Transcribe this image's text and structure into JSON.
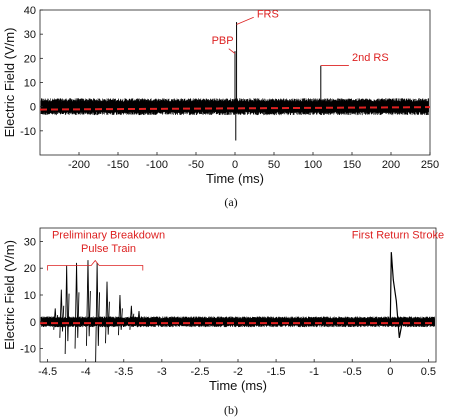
{
  "chart_data": [
    {
      "type": "line",
      "caption": "(a)",
      "xlabel": "Time (ms)",
      "ylabel": "Electric Field (V/m)",
      "xlim": [
        -250,
        250
      ],
      "ylim": [
        -20,
        40
      ],
      "xticks": [
        -200,
        -150,
        -100,
        -50,
        0,
        50,
        100,
        150,
        200,
        250
      ],
      "yticks": [
        -10,
        0,
        10,
        20,
        30,
        40
      ],
      "grid": false,
      "series": [
        {
          "color": "#000000",
          "noise_band": [
            -3.5,
            3.5
          ],
          "spikes": [
            {
              "x": 0,
              "y": 23
            },
            {
              "x": 2,
              "y": 35
            },
            {
              "x": 1,
              "y": -14
            },
            {
              "x": 110,
              "y": 17
            }
          ]
        },
        {
          "style": "dashed",
          "color": "#e02020",
          "x": [
            -250,
            250
          ],
          "y": [
            -1.2,
            -0.2
          ]
        }
      ],
      "annotations": [
        {
          "text": "PBP",
          "x": -30,
          "y": 26
        },
        {
          "text": "FRS",
          "x": 28,
          "y": 37
        },
        {
          "text": "2nd RS",
          "x": 150,
          "y": 19
        }
      ]
    },
    {
      "type": "line",
      "caption": "(b)",
      "xlabel": "Time (ms)",
      "ylabel": "Electric Field (V/m)",
      "xlim": [
        -4.6,
        0.6
      ],
      "ylim": [
        -15,
        35
      ],
      "xticks": [
        -4.5,
        -4,
        -3.5,
        -3,
        -2.5,
        -2,
        -1.5,
        -1,
        -0.5,
        0,
        0.5
      ],
      "xtick_labels": [
        "-4.5",
        "-4",
        "-3.5",
        "-3",
        "-2.5",
        "-2",
        "-1.5",
        "-1",
        "-0.5",
        "0",
        "0.5"
      ],
      "yticks": [
        -10,
        0,
        10,
        20,
        30
      ],
      "grid": false,
      "series": [
        {
          "color": "#000000",
          "noise_band": [
            -2,
            2
          ],
          "pulses": [
            {
              "x": -4.4,
              "y": 5,
              "ymin": -3
            },
            {
              "x": -4.32,
              "y": 12,
              "ymin": -6
            },
            {
              "x": -4.25,
              "y": 21,
              "ymin": -12
            },
            {
              "x": -4.12,
              "y": 22,
              "ymin": -10
            },
            {
              "x": -3.97,
              "y": 23,
              "ymin": -9
            },
            {
              "x": -3.85,
              "y": 22,
              "ymin": -15
            },
            {
              "x": -3.72,
              "y": 15,
              "ymin": -8
            },
            {
              "x": -3.55,
              "y": 10,
              "ymin": -5
            },
            {
              "x": -3.4,
              "y": 6,
              "ymin": -3
            },
            {
              "x": -3.3,
              "y": 4,
              "ymin": -2
            }
          ],
          "return_stroke": {
            "x": 0.0,
            "peak": 26,
            "trough": -6
          }
        },
        {
          "style": "dashed",
          "color": "#e02020",
          "x": [
            -4.6,
            0.6
          ],
          "y": [
            -0.5,
            -0.5
          ]
        }
      ],
      "annotations": [
        {
          "text": "Preliminary Breakdown",
          "x": -3.7,
          "y": 31
        },
        {
          "text": "Pulse Train",
          "x": -3.7,
          "y": 26
        },
        {
          "text": "First Return Stroke",
          "x": 0.1,
          "y": 31
        }
      ],
      "bracket": {
        "x": [
          -4.5,
          -3.25
        ],
        "y": 21
      }
    }
  ]
}
